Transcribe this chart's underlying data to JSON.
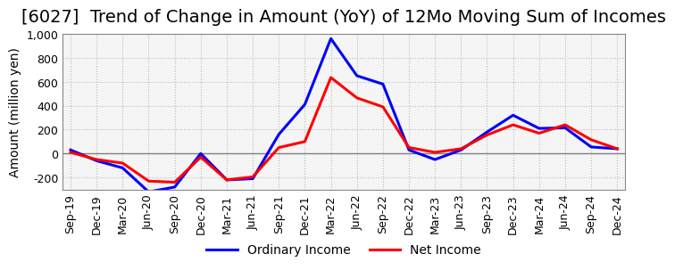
{
  "title": "[6027]  Trend of Change in Amount (YoY) of 12Mo Moving Sum of Incomes",
  "ylabel": "Amount (million yen)",
  "ylim": [
    -300,
    1000
  ],
  "yticks": [
    -200,
    0,
    200,
    400,
    600,
    800,
    1000
  ],
  "x_labels": [
    "Sep-19",
    "Dec-19",
    "Mar-20",
    "Jun-20",
    "Sep-20",
    "Dec-20",
    "Mar-21",
    "Jun-21",
    "Sep-21",
    "Dec-21",
    "Mar-22",
    "Jun-22",
    "Sep-22",
    "Dec-22",
    "Mar-23",
    "Jun-23",
    "Sep-23",
    "Dec-23",
    "Mar-24",
    "Jun-24",
    "Sep-24",
    "Dec-24"
  ],
  "ordinary_income": [
    30,
    -60,
    -120,
    -320,
    -280,
    0,
    -220,
    -210,
    160,
    410,
    960,
    650,
    580,
    30,
    -50,
    30,
    180,
    320,
    210,
    215,
    55,
    40
  ],
  "net_income": [
    10,
    -50,
    -80,
    -230,
    -240,
    -30,
    -220,
    -195,
    50,
    100,
    635,
    465,
    390,
    50,
    10,
    40,
    155,
    240,
    170,
    240,
    115,
    40
  ],
  "ordinary_income_color": "#0000FF",
  "net_income_color": "#FF0000",
  "line_width": 2.2,
  "background_color": "#FFFFFF",
  "plot_bg_color": "#F5F5F5",
  "grid_color": "#BBBBBB",
  "zeroline_color": "#808080",
  "title_fontsize": 14,
  "label_fontsize": 10,
  "tick_fontsize": 9
}
